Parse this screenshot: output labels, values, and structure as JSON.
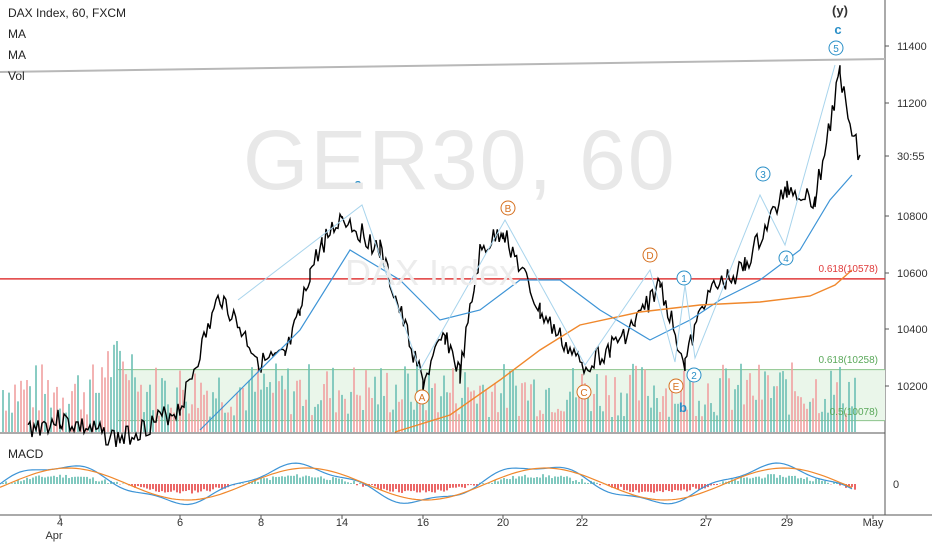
{
  "header": {
    "symbol_line": "DAX Index, 60, FXCM",
    "indicator_1": "MA",
    "indicator_2": "MA",
    "indicator_3": "Vol",
    "macd_label": "MACD"
  },
  "watermark": {
    "main": "GER30, 60",
    "sub": "DAX Index"
  },
  "colors": {
    "candle": "#000000",
    "ma_fast": "#3d94d6",
    "ma_slow": "#f0882c",
    "vol_up": "#6bbfb4",
    "vol_down": "#f0a0a0",
    "fib_red": "#e03a3a",
    "fib_green": "#8cc48c",
    "wave_blue": "#2a8fc7",
    "wave_orange": "#d6701f",
    "trendline": "#b8b8b8",
    "macd_line": "#3d94d6",
    "signal_line": "#f0882c"
  },
  "chart_data": {
    "type": "line",
    "title": "DAX Index, 60, FXCM",
    "y_axis": {
      "ticks": [
        10200,
        10400,
        10600,
        10800,
        11000,
        11200,
        11400
      ],
      "ylim": [
        10010,
        11480
      ]
    },
    "price_tick_labels": [
      "11400",
      "11200",
      "30:55",
      "10800",
      "10600",
      "10400",
      "10200"
    ],
    "x_axis": {
      "tick_labels": [
        "Apr",
        "4",
        "6",
        "8",
        "14",
        "16",
        "20",
        "22",
        "27",
        "29",
        "May"
      ]
    },
    "macd_axis": {
      "tick_labels": [
        "0"
      ]
    },
    "price_path": [
      [
        "Apr 3",
        10050
      ],
      [
        "Apr 4",
        10080
      ],
      [
        "Apr 5",
        10010
      ],
      [
        "Apr 6",
        10120
      ],
      [
        "Apr 7",
        10520
      ],
      [
        "Apr 8",
        10280
      ],
      [
        "Apr 9",
        10300
      ],
      [
        "Apr 10",
        10450
      ],
      [
        "Apr 11",
        10600
      ],
      [
        "Apr 13",
        10700
      ],
      [
        "Apr 14",
        10800
      ],
      [
        "Apr 15",
        10680
      ],
      [
        "Apr 16",
        10210
      ],
      [
        "Apr 17",
        10380
      ],
      [
        "Apr 18",
        10240
      ],
      [
        "Apr 19",
        10670
      ],
      [
        "Apr 20",
        10750
      ],
      [
        "Apr 21",
        10460
      ],
      [
        "Apr 22",
        10270
      ],
      [
        "Apr 23",
        10330
      ],
      [
        "Apr 24",
        10420
      ],
      [
        "Apr 25",
        10560
      ],
      [
        "Apr 26",
        10280
      ],
      [
        "Apr 27",
        10520
      ],
      [
        "Apr 28",
        10620
      ],
      [
        "Apr 29",
        10900
      ],
      [
        "Apr 30",
        10860
      ],
      [
        "May 1",
        11300
      ],
      [
        "May 2",
        11000
      ]
    ],
    "fib_levels": [
      {
        "label": "0.618(10578)",
        "value": 10578
      },
      {
        "label": "0.618(10258)",
        "value": 10258
      },
      {
        "label": "0.5(10078)",
        "value": 10078
      }
    ],
    "wave_labels": [
      "(y)",
      "c",
      "5",
      "a",
      "B",
      "D",
      "1",
      "3",
      "4",
      "A",
      "C",
      "E",
      "2",
      "b"
    ],
    "series": [
      {
        "values": []
      }
    ]
  }
}
